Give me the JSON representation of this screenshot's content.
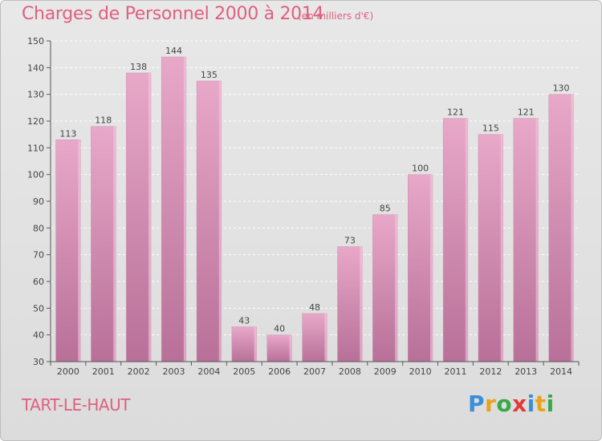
{
  "header": {
    "title": "Charges de Personnel 2000 à 2014",
    "subtitle": "(en milliers d'€)"
  },
  "footer": {
    "place": "TART-LE-HAUT",
    "logo": [
      "P",
      "r",
      "o",
      "x",
      "i",
      "t",
      "i"
    ],
    "logo_colors": [
      "#3a8fd8",
      "#e8a21b",
      "#3aa84a",
      "#e23a3a",
      "#3a8fd8",
      "#e8a21b",
      "#3aa84a"
    ]
  },
  "chart_data": {
    "type": "bar",
    "categories": [
      "2000",
      "2001",
      "2002",
      "2003",
      "2004",
      "2005",
      "2006",
      "2007",
      "2008",
      "2009",
      "2010",
      "2011",
      "2012",
      "2013",
      "2014"
    ],
    "values": [
      113,
      118,
      138,
      144,
      135,
      43,
      40,
      48,
      73,
      85,
      100,
      121,
      115,
      121,
      130
    ],
    "title": "Charges de Personnel 2000 à 2014",
    "subtitle": "(en milliers d'€)",
    "xlabel": "",
    "ylabel": "",
    "ylim": [
      30,
      150
    ],
    "yticks": [
      30,
      40,
      50,
      60,
      70,
      80,
      90,
      100,
      110,
      120,
      130,
      140,
      150
    ],
    "grid": true,
    "bar_color_top": "#e8a8c8",
    "bar_color_bottom": "#b87098"
  }
}
